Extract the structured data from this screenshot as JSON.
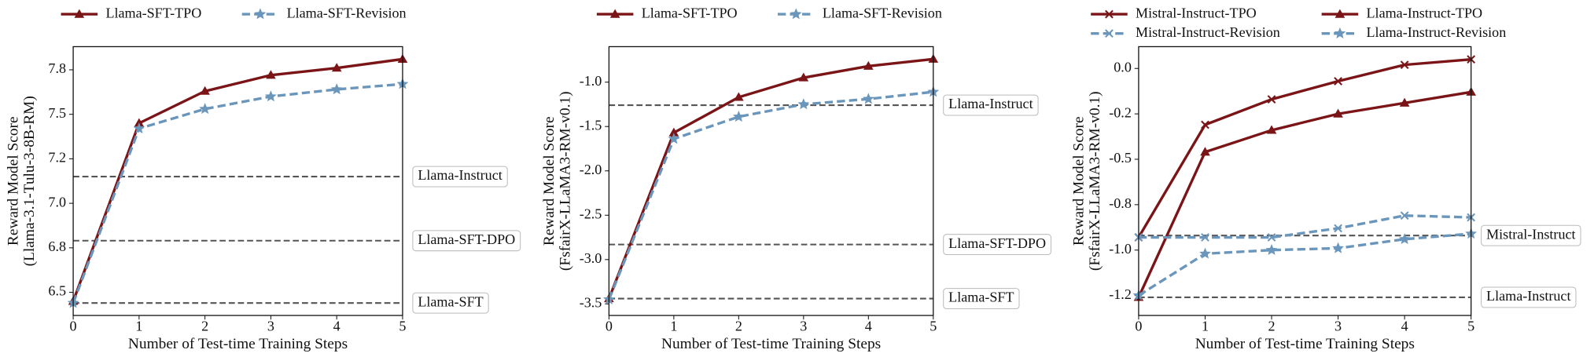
{
  "chart_data": [
    {
      "type": "line",
      "xlabel": "Number of Test-time Training Steps",
      "ylabel": [
        "Reward Model Score",
        "(Llama-3.1-Tulu-3-8B-RM)"
      ],
      "x": [
        0,
        1,
        2,
        3,
        4,
        5
      ],
      "xlim": [
        0,
        5
      ],
      "xticks": [
        0,
        1,
        2,
        3,
        4,
        5
      ],
      "ylim": [
        6.37,
        7.88
      ],
      "yticks": [
        6.5,
        {
          "value": 6.75,
          "label": "6.8"
        },
        {
          "value": 7.0,
          "label": "7.0"
        },
        {
          "value": 7.25,
          "label": "7.2"
        },
        7.5,
        {
          "value": 7.75,
          "label": "7.8"
        }
      ],
      "legend_columns": 2,
      "series": [
        {
          "name": "Llama-SFT-TPO",
          "color": "#7b1416",
          "marker": "triangle",
          "linestyle": "solid",
          "values": [
            6.45,
            7.45,
            7.63,
            7.72,
            7.76,
            7.81
          ]
        },
        {
          "name": "Llama-SFT-Revision",
          "color": "#6a96bb",
          "marker": "star",
          "linestyle": "dashed",
          "values": [
            6.44,
            7.42,
            7.53,
            7.6,
            7.64,
            7.67
          ]
        }
      ],
      "reference_lines": [
        {
          "label": "Llama-Instruct",
          "value": 7.15
        },
        {
          "label": "Llama-SFT-DPO",
          "value": 6.79
        },
        {
          "label": "Llama-SFT",
          "value": 6.44
        }
      ]
    },
    {
      "type": "line",
      "xlabel": "Number of Test-time Training Steps",
      "ylabel": [
        "Reward Model Score",
        "(FsfairX-LLaMA3-RM-v0.1)"
      ],
      "x": [
        0,
        1,
        2,
        3,
        4,
        5
      ],
      "xlim": [
        0,
        5
      ],
      "xticks": [
        0,
        1,
        2,
        3,
        4,
        5
      ],
      "ylim": [
        -3.63,
        -0.6
      ],
      "yticks": [
        -3.5,
        {
          "value": -3.0,
          "label": "-3.0"
        },
        -2.5,
        {
          "value": -2.0,
          "label": "-2.0"
        },
        -1.5,
        {
          "value": -1.0,
          "label": "-1.0"
        }
      ],
      "legend_columns": 2,
      "series": [
        {
          "name": "Llama-SFT-TPO",
          "color": "#7b1416",
          "marker": "triangle",
          "linestyle": "solid",
          "values": [
            -3.44,
            -1.57,
            -1.17,
            -0.95,
            -0.82,
            -0.74
          ]
        },
        {
          "name": "Llama-SFT-Revision",
          "color": "#6a96bb",
          "marker": "star",
          "linestyle": "dashed",
          "values": [
            -3.45,
            -1.64,
            -1.39,
            -1.25,
            -1.19,
            -1.11
          ]
        }
      ],
      "reference_lines": [
        {
          "label": "Llama-Instruct",
          "value": -1.26
        },
        {
          "label": "Llama-SFT-DPO",
          "value": -2.83
        },
        {
          "label": "Llama-SFT",
          "value": -3.44
        }
      ]
    },
    {
      "type": "line",
      "xlabel": "Number of Test-time Training Steps",
      "ylabel": [
        "Reward Model Score",
        "(FsfairX-LLaMA3-RM-v0.1)"
      ],
      "x": [
        0,
        1,
        2,
        3,
        4,
        5
      ],
      "xlim": [
        0,
        5
      ],
      "xticks": [
        0,
        1,
        2,
        3,
        4,
        5
      ],
      "ylim": [
        -1.36,
        0.12
      ],
      "yticks": [
        {
          "value": -1.25,
          "label": "-1.2"
        },
        {
          "value": -1.0,
          "label": "-1.0"
        },
        {
          "value": -0.75,
          "label": "-0.8"
        },
        -0.5,
        {
          "value": -0.25,
          "label": "-0.2"
        },
        {
          "value": 0,
          "label": "0.0"
        }
      ],
      "legend_columns": 2,
      "series": [
        {
          "name": "Mistral-Instruct-TPO",
          "color": "#7b1416",
          "marker": "x",
          "linestyle": "solid",
          "values": [
            -0.93,
            -0.31,
            -0.17,
            -0.07,
            0.02,
            0.05
          ]
        },
        {
          "name": "Llama-Instruct-TPO",
          "color": "#7b1416",
          "marker": "triangle",
          "linestyle": "solid",
          "values": [
            -1.26,
            -0.46,
            -0.34,
            -0.25,
            -0.19,
            -0.13
          ]
        },
        {
          "name": "Mistral-Instruct-Revision",
          "color": "#6a96bb",
          "marker": "x",
          "linestyle": "dashed",
          "values": [
            -0.93,
            -0.93,
            -0.93,
            -0.88,
            -0.81,
            -0.82
          ]
        },
        {
          "name": "Llama-Instruct-Revision",
          "color": "#6a96bb",
          "marker": "star",
          "linestyle": "dashed",
          "values": [
            -1.25,
            -1.02,
            -1.0,
            -0.99,
            -0.94,
            -0.91
          ]
        }
      ],
      "reference_lines": [
        {
          "label": "Mistral-Instruct",
          "value": -0.92
        },
        {
          "label": "Llama-Instruct",
          "value": -1.26
        }
      ]
    }
  ]
}
